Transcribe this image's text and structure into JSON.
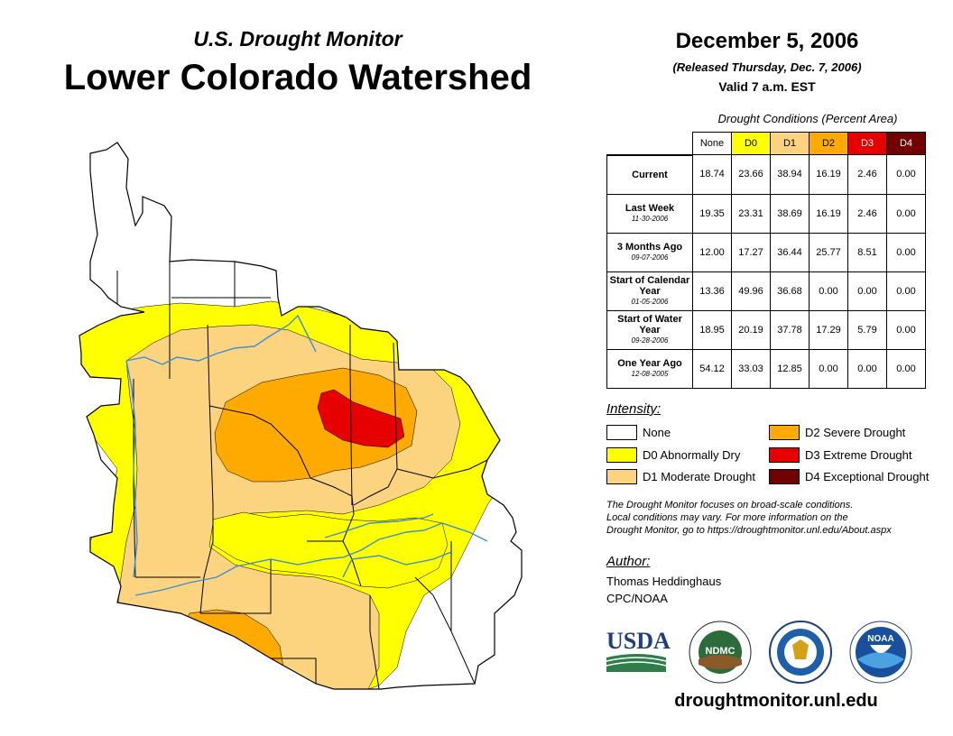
{
  "header": {
    "subtitle": "U.S. Drought Monitor",
    "title": "Lower Colorado Watershed",
    "date": "December 5, 2006",
    "released": "(Released Thursday, Dec. 7, 2006)",
    "valid": "Valid 7 a.m. EST"
  },
  "table": {
    "caption": "Drought Conditions (Percent Area)",
    "columns": [
      "None",
      "D0",
      "D1",
      "D2",
      "D3",
      "D4"
    ],
    "rows": [
      {
        "label": "Current",
        "sublabel": "",
        "values": [
          "18.74",
          "23.66",
          "38.94",
          "16.19",
          "2.46",
          "0.00"
        ]
      },
      {
        "label": "Last Week",
        "sublabel": "11-30-2006",
        "values": [
          "19.35",
          "23.31",
          "38.69",
          "16.19",
          "2.46",
          "0.00"
        ]
      },
      {
        "label": "3 Months Ago",
        "sublabel": "09-07-2006",
        "values": [
          "12.00",
          "17.27",
          "36.44",
          "25.77",
          "8.51",
          "0.00"
        ]
      },
      {
        "label": "Start of Calendar Year",
        "sublabel": "01-05-2006",
        "values": [
          "13.36",
          "49.96",
          "36.68",
          "0.00",
          "0.00",
          "0.00"
        ]
      },
      {
        "label": "Start of Water Year",
        "sublabel": "09-28-2006",
        "values": [
          "18.95",
          "20.19",
          "37.78",
          "17.29",
          "5.79",
          "0.00"
        ]
      },
      {
        "label": "One Year Ago",
        "sublabel": "12-08-2005",
        "values": [
          "54.12",
          "33.03",
          "12.85",
          "0.00",
          "0.00",
          "0.00"
        ]
      }
    ]
  },
  "legend": {
    "title": "Intensity:",
    "items": [
      {
        "label": "None",
        "color": "#ffffff"
      },
      {
        "label": "D0 Abnormally Dry",
        "color": "#ffff00"
      },
      {
        "label": "D1 Moderate Drought",
        "color": "#fcd37f"
      },
      {
        "label": "D2 Severe Drought",
        "color": "#ffaa00"
      },
      {
        "label": "D3 Extreme Drought",
        "color": "#e60000"
      },
      {
        "label": "D4 Exceptional Drought",
        "color": "#730000"
      }
    ]
  },
  "note": {
    "line1": "The Drought Monitor focuses on broad-scale conditions.",
    "line2": "Local conditions may vary. For more information on the",
    "line3": "Drought Monitor, go to https://droughtmonitor.unl.edu/About.aspx"
  },
  "author": {
    "title": "Author:",
    "name": "Thomas Heddinghaus",
    "org": "CPC/NOAA"
  },
  "logos": {
    "usda": "USDA",
    "ndmc": "NDMC",
    "noaa": "NOAA"
  },
  "website": "droughtmonitor.unl.edu",
  "colors": {
    "river": "#3a8fd9",
    "border": "#000000"
  }
}
